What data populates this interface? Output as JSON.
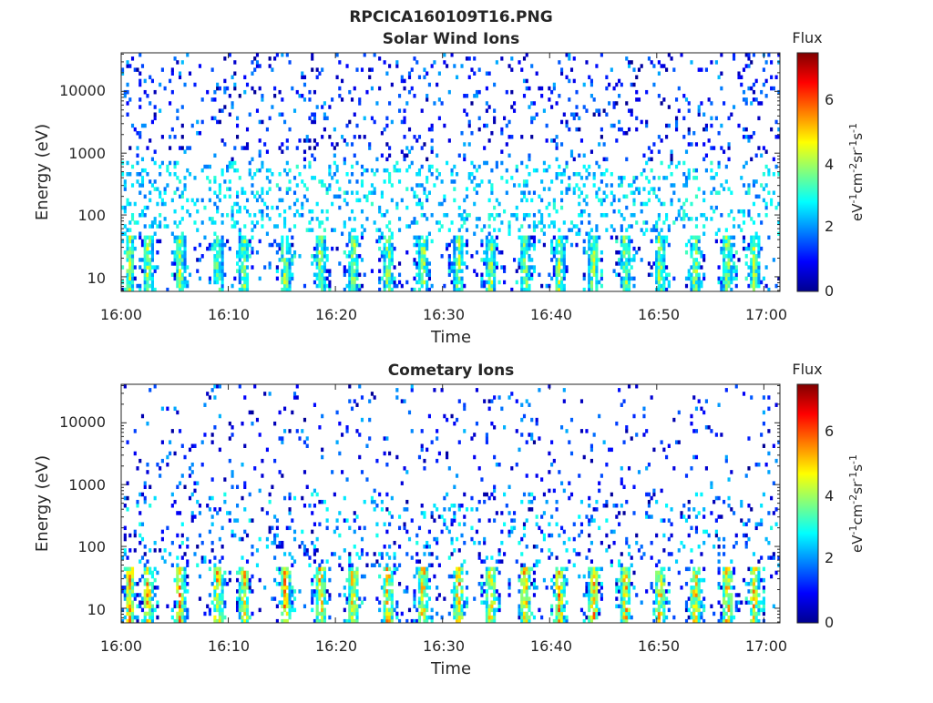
{
  "figure": {
    "title": "RPCICA160109T16.PNG"
  },
  "chart_data": [
    {
      "type": "heatmap",
      "title": "Solar Wind Ions",
      "xlabel": "Time",
      "ylabel": "Energy (eV)",
      "x_ticks": [
        "16:00",
        "16:10",
        "16:20",
        "16:30",
        "16:40",
        "16:50",
        "17:00"
      ],
      "x_range_minutes": [
        0,
        61.5
      ],
      "y_scale": "log",
      "y_ticks": [
        "10",
        "100",
        "1000",
        "10000"
      ],
      "y_range": [
        5.8,
        42000
      ],
      "colorbar": {
        "title": "Flux",
        "label": "eV-1cm-2sr-1s-1",
        "ticks": [
          "0",
          "2",
          "4",
          "6"
        ],
        "range": [
          0,
          7.4
        ],
        "colormap": "jet"
      },
      "low_energy_bursts_minutes": [
        0.8,
        2.5,
        5.5,
        9.0,
        11.5,
        15.3,
        18.6,
        21.7,
        24.9,
        28.2,
        31.5,
        34.5,
        37.7,
        40.9,
        44.1,
        47.1,
        50.3,
        53.6,
        56.6,
        59.1
      ],
      "max_flux": 5.0
    },
    {
      "type": "heatmap",
      "title": "Cometary Ions",
      "xlabel": "Time",
      "ylabel": "Energy (eV)",
      "x_ticks": [
        "16:00",
        "16:10",
        "16:20",
        "16:30",
        "16:40",
        "16:50",
        "17:00"
      ],
      "x_range_minutes": [
        0,
        61.5
      ],
      "y_scale": "log",
      "y_ticks": [
        "10",
        "100",
        "1000",
        "10000"
      ],
      "y_range": [
        5.8,
        42000
      ],
      "colorbar": {
        "title": "Flux",
        "label": "eV-1cm-2sr-1s-1",
        "ticks": [
          "0",
          "2",
          "4",
          "6"
        ],
        "range": [
          0,
          7.4
        ],
        "colormap": "jet"
      },
      "low_energy_bursts_minutes": [
        0.8,
        2.5,
        5.5,
        9.0,
        11.5,
        15.3,
        18.6,
        21.7,
        24.9,
        28.2,
        31.5,
        34.5,
        37.7,
        40.9,
        44.1,
        47.1,
        50.3,
        53.6,
        56.6,
        59.1
      ],
      "max_flux": 6.3
    }
  ]
}
